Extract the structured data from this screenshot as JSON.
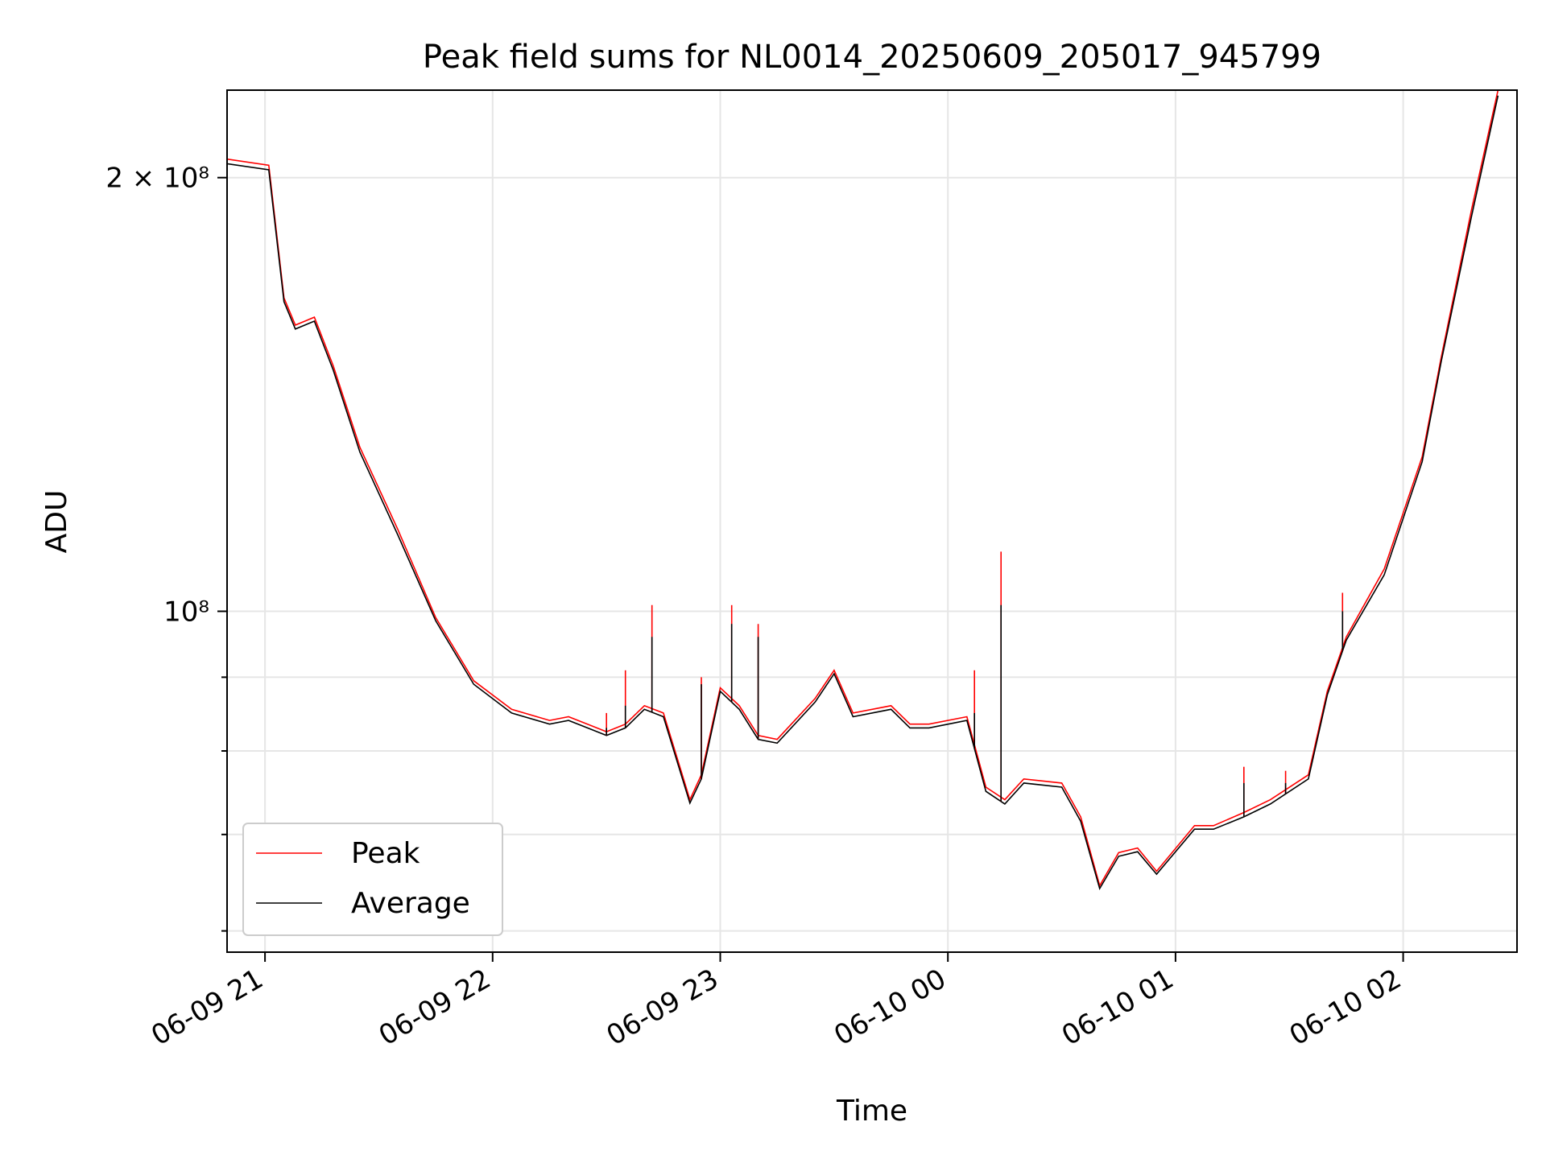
{
  "chart_data": {
    "type": "line",
    "title": "Peak field sums for NL0014_20250609_205017_945799",
    "xlabel": "Time",
    "ylabel": "ADU",
    "y_scale": "log",
    "x_ticks": [
      "06-09 21",
      "06-09 22",
      "06-09 23",
      "06-10 00",
      "06-10 01",
      "06-10 02"
    ],
    "y_tick_labels": {
      "major_200M": "2 × 10⁸",
      "major_100M": "10⁸"
    },
    "ylim": [
      58000000,
      230000000
    ],
    "xlim": [
      "2025-06-09 20:50",
      "2025-06-10 02:30"
    ],
    "grid": true,
    "legend": {
      "location": "lower left",
      "entries": [
        "Peak",
        "Average"
      ]
    },
    "colors": {
      "Peak": "#ff0000",
      "Average": "#000000"
    },
    "series": [
      {
        "name": "Peak",
        "x": [
          "2025-06-09 20:50",
          "2025-06-09 21:01",
          "2025-06-09 21:05",
          "2025-06-09 21:08",
          "2025-06-09 21:13",
          "2025-06-09 21:18",
          "2025-06-09 21:25",
          "2025-06-09 21:35",
          "2025-06-09 21:45",
          "2025-06-09 21:55",
          "2025-06-09 22:05",
          "2025-06-09 22:15",
          "2025-06-09 22:20",
          "2025-06-09 22:25",
          "2025-06-09 22:30",
          "2025-06-09 22:35",
          "2025-06-09 22:40",
          "2025-06-09 22:45",
          "2025-06-09 22:52",
          "2025-06-09 22:55",
          "2025-06-09 23:00",
          "2025-06-09 23:05",
          "2025-06-09 23:10",
          "2025-06-09 23:15",
          "2025-06-09 23:25",
          "2025-06-09 23:30",
          "2025-06-09 23:35",
          "2025-06-09 23:45",
          "2025-06-09 23:50",
          "2025-06-09 23:55",
          "2025-06-10 00:05",
          "2025-06-10 00:10",
          "2025-06-10 00:15",
          "2025-06-10 00:20",
          "2025-06-10 00:30",
          "2025-06-10 00:35",
          "2025-06-10 00:40",
          "2025-06-10 00:45",
          "2025-06-10 00:50",
          "2025-06-10 00:55",
          "2025-06-10 01:05",
          "2025-06-10 01:10",
          "2025-06-10 01:18",
          "2025-06-10 01:25",
          "2025-06-10 01:35",
          "2025-06-10 01:40",
          "2025-06-10 01:45",
          "2025-06-10 01:55",
          "2025-06-10 02:05",
          "2025-06-10 02:10",
          "2025-06-10 02:18",
          "2025-06-10 02:25"
        ],
        "y": [
          206000000,
          204000000,
          165000000,
          158000000,
          160000000,
          148000000,
          130000000,
          114000000,
          99000000,
          89500000,
          85500000,
          84000000,
          84500000,
          83500000,
          82500000,
          83500000,
          86000000,
          85000000,
          74000000,
          77000000,
          88500000,
          86000000,
          82000000,
          81500000,
          87000000,
          91000000,
          85000000,
          86000000,
          83500000,
          83500000,
          84500000,
          75500000,
          74000000,
          76500000,
          76000000,
          72000000,
          64500000,
          68000000,
          68500000,
          66000000,
          71000000,
          71000000,
          72500000,
          74000000,
          77000000,
          88000000,
          96000000,
          107000000,
          128000000,
          150000000,
          190000000,
          230000000
        ]
      },
      {
        "name": "Average",
        "x": [
          "2025-06-09 20:50",
          "2025-06-09 21:01",
          "2025-06-09 21:05",
          "2025-06-09 21:08",
          "2025-06-09 21:13",
          "2025-06-09 21:18",
          "2025-06-09 21:25",
          "2025-06-09 21:35",
          "2025-06-09 21:45",
          "2025-06-09 21:55",
          "2025-06-09 22:05",
          "2025-06-09 22:15",
          "2025-06-09 22:20",
          "2025-06-09 22:25",
          "2025-06-09 22:30",
          "2025-06-09 22:35",
          "2025-06-09 22:40",
          "2025-06-09 22:45",
          "2025-06-09 22:52",
          "2025-06-09 22:55",
          "2025-06-09 23:00",
          "2025-06-09 23:05",
          "2025-06-09 23:10",
          "2025-06-09 23:15",
          "2025-06-09 23:25",
          "2025-06-09 23:30",
          "2025-06-09 23:35",
          "2025-06-09 23:45",
          "2025-06-09 23:50",
          "2025-06-09 23:55",
          "2025-06-10 00:05",
          "2025-06-10 00:10",
          "2025-06-10 00:15",
          "2025-06-10 00:20",
          "2025-06-10 00:30",
          "2025-06-10 00:35",
          "2025-06-10 00:40",
          "2025-06-10 00:45",
          "2025-06-10 00:50",
          "2025-06-10 00:55",
          "2025-06-10 01:05",
          "2025-06-10 01:10",
          "2025-06-10 01:18",
          "2025-06-10 01:25",
          "2025-06-10 01:35",
          "2025-06-10 01:40",
          "2025-06-10 01:45",
          "2025-06-10 01:55",
          "2025-06-10 02:05",
          "2025-06-10 02:10",
          "2025-06-10 02:18",
          "2025-06-10 02:25"
        ],
        "y": [
          204500000,
          202500000,
          164000000,
          157000000,
          159000000,
          147000000,
          129000000,
          113000000,
          98500000,
          89000000,
          85000000,
          83500000,
          84000000,
          83000000,
          82000000,
          83000000,
          85500000,
          84500000,
          73600000,
          76500000,
          88000000,
          85500000,
          81500000,
          81000000,
          86500000,
          90500000,
          84500000,
          85500000,
          83000000,
          83000000,
          84000000,
          75000000,
          73500000,
          76000000,
          75500000,
          71500000,
          64200000,
          67600000,
          68100000,
          65700000,
          70600000,
          70600000,
          72000000,
          73500000,
          76500000,
          87500000,
          95500000,
          106000000,
          127000000,
          149000000,
          188000000,
          228000000
        ]
      }
    ],
    "spikes": [
      {
        "x": "2025-06-09 22:30",
        "peak": 85000000,
        "average": 83000000
      },
      {
        "x": "2025-06-09 22:35",
        "peak": 91000000,
        "average": 86000000
      },
      {
        "x": "2025-06-09 22:42",
        "peak": 101000000,
        "average": 96000000
      },
      {
        "x": "2025-06-09 22:55",
        "peak": 90000000,
        "average": 89000000
      },
      {
        "x": "2025-06-09 23:03",
        "peak": 101000000,
        "average": 98000000
      },
      {
        "x": "2025-06-09 23:10",
        "peak": 98000000,
        "average": 96000000
      },
      {
        "x": "2025-06-10 00:07",
        "peak": 91000000,
        "average": 85000000
      },
      {
        "x": "2025-06-10 00:14",
        "peak": 110000000,
        "average": 101000000
      },
      {
        "x": "2025-06-10 01:18",
        "peak": 78000000,
        "average": 76000000
      },
      {
        "x": "2025-06-10 01:29",
        "peak": 77500000,
        "average": 76000000
      },
      {
        "x": "2025-06-10 01:44",
        "peak": 103000000,
        "average": 100000000
      }
    ]
  }
}
